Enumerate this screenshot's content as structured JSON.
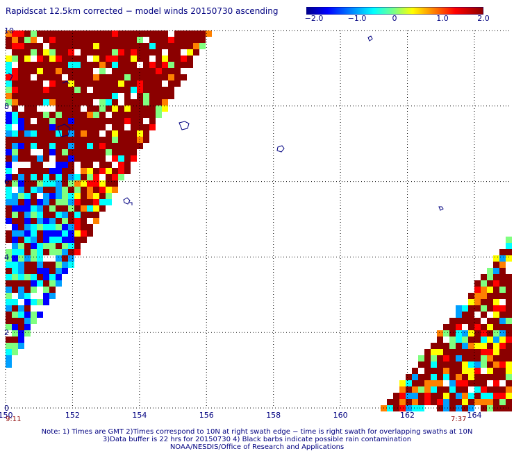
{
  "title": "Rapidscat 12.5km corrected − model winds 20150730 ascending",
  "colorbar": {
    "labels": [
      "−2.0",
      "−1.0",
      "0",
      "1.0",
      "2.0"
    ],
    "values": [
      -2.0,
      -1.0,
      0,
      1.0,
      2.0
    ],
    "colors": [
      "#00008b",
      "#0000ff",
      "#00a0ff",
      "#00ffff",
      "#80ff80",
      "#ffff00",
      "#ff8000",
      "#ff0000",
      "#8b0000"
    ]
  },
  "map": {
    "x_ticks": [
      "150",
      "152",
      "154",
      "156",
      "158",
      "160",
      "162",
      "164"
    ],
    "y_ticks": [
      "0",
      "2",
      "4",
      "6",
      "8",
      "10"
    ],
    "lon_range": [
      150,
      165.1
    ],
    "lat_range": [
      0,
      10
    ],
    "grid": "dotted",
    "swath_left_time": "9:11",
    "swath_right_time": "7:37"
  },
  "notes": [
    "Note: 1) Times are GMT 2)Times correspond to 10N at right swath edge − time is right swath for overlapping swaths at 10N",
    "3)Data buffer is 22 hrs for 20150730 4) Black barbs indicate possible rain contamination",
    "NOAA/NESDIS/Office of Research and Applications"
  ]
}
